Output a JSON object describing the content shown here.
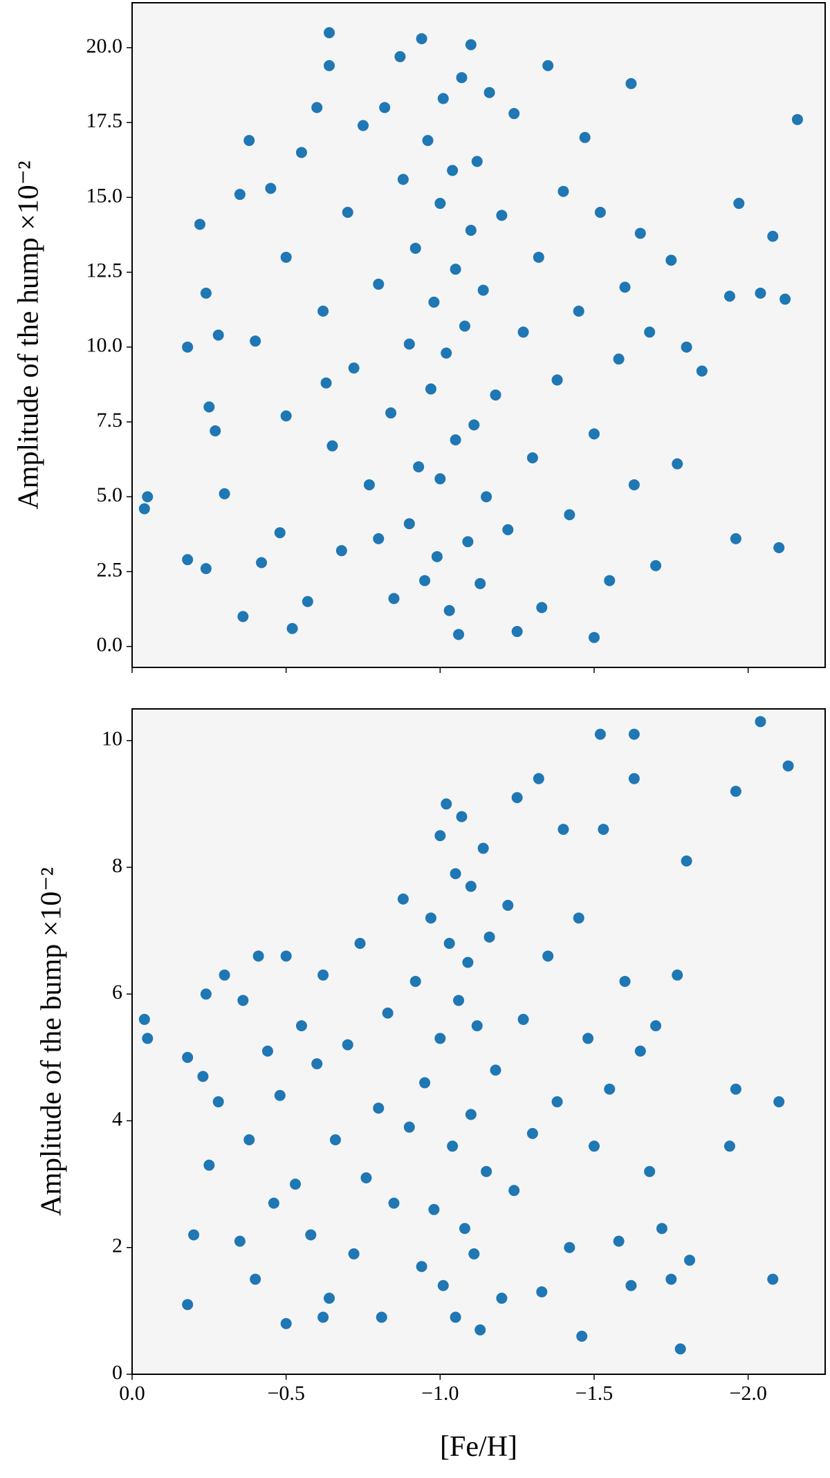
{
  "chart_data": [
    {
      "type": "scatter",
      "ylabel": "Amplitude of the hump ×10⁻²",
      "color": "#1f77b4",
      "xlim": [
        0,
        -2.25
      ],
      "ylim": [
        -0.7,
        21.5
      ],
      "xticks": [
        0,
        -0.5,
        -1,
        -1.5,
        -2
      ],
      "yticks": [
        {
          "value": 0,
          "label": "0.0"
        },
        2.5,
        {
          "value": 5,
          "label": "5.0"
        },
        7.5,
        {
          "value": 10,
          "label": "10.0"
        },
        12.5,
        {
          "value": 15,
          "label": "15.0"
        },
        17.5,
        {
          "value": 20,
          "label": "20.0"
        }
      ],
      "x": [
        -0.04,
        -0.05,
        -0.18,
        -0.18,
        -0.22,
        -0.24,
        -0.24,
        -0.25,
        -0.27,
        -0.28,
        -0.3,
        -0.35,
        -0.36,
        -0.38,
        -0.4,
        -0.42,
        -0.45,
        -0.48,
        -0.5,
        -0.5,
        -0.52,
        -0.55,
        -0.57,
        -0.6,
        -0.62,
        -0.63,
        -0.64,
        -0.64,
        -0.65,
        -0.68,
        -0.7,
        -0.72,
        -0.75,
        -0.77,
        -0.8,
        -0.8,
        -0.82,
        -0.84,
        -0.85,
        -0.87,
        -0.88,
        -0.9,
        -0.9,
        -0.92,
        -0.93,
        -0.94,
        -0.95,
        -0.96,
        -0.97,
        -0.98,
        -0.99,
        -1.0,
        -1.0,
        -1.01,
        -1.02,
        -1.03,
        -1.04,
        -1.05,
        -1.05,
        -1.06,
        -1.07,
        -1.08,
        -1.09,
        -1.1,
        -1.1,
        -1.11,
        -1.12,
        -1.13,
        -1.14,
        -1.15,
        -1.16,
        -1.18,
        -1.2,
        -1.22,
        -1.24,
        -1.25,
        -1.27,
        -1.3,
        -1.32,
        -1.33,
        -1.35,
        -1.38,
        -1.4,
        -1.42,
        -1.45,
        -1.47,
        -1.5,
        -1.5,
        -1.52,
        -1.55,
        -1.58,
        -1.6,
        -1.62,
        -1.63,
        -1.65,
        -1.68,
        -1.7,
        -1.75,
        -1.77,
        -1.8,
        -1.85,
        -1.94,
        -1.96,
        -1.97,
        -2.04,
        -2.08,
        -2.1,
        -2.12,
        -2.16
      ],
      "y": [
        4.6,
        5.0,
        10.0,
        2.9,
        14.1,
        11.8,
        2.6,
        8.0,
        7.2,
        10.4,
        5.1,
        15.1,
        1.0,
        16.9,
        10.2,
        2.8,
        15.3,
        3.8,
        13.0,
        7.7,
        0.6,
        16.5,
        1.5,
        18.0,
        11.2,
        8.8,
        20.5,
        19.4,
        6.7,
        3.2,
        14.5,
        9.3,
        17.4,
        5.4,
        12.1,
        3.6,
        18.0,
        7.8,
        1.6,
        19.7,
        15.6,
        10.1,
        4.1,
        13.3,
        6.0,
        20.3,
        2.2,
        16.9,
        8.6,
        11.5,
        3.0,
        14.8,
        5.6,
        18.3,
        9.8,
        1.2,
        15.9,
        12.6,
        6.9,
        0.4,
        19.0,
        10.7,
        3.5,
        20.1,
        13.9,
        7.4,
        16.2,
        2.1,
        11.9,
        5.0,
        18.5,
        8.4,
        14.4,
        3.9,
        17.8,
        0.5,
        10.5,
        6.3,
        13.0,
        1.3,
        19.4,
        8.9,
        15.2,
        4.4,
        11.2,
        17.0,
        0.3,
        7.1,
        14.5,
        2.2,
        9.6,
        12.0,
        18.8,
        5.4,
        13.8,
        10.5,
        2.7,
        12.9,
        6.1,
        10.0,
        9.2,
        11.7,
        3.6,
        14.8,
        11.8,
        13.7,
        3.3,
        11.6,
        17.6
      ]
    },
    {
      "type": "scatter",
      "ylabel": "Amplitude of the bump ×10⁻²",
      "xlabel": "[Fe/H]",
      "color": "#1f77b4",
      "xlim": [
        0,
        -2.25
      ],
      "ylim": [
        0,
        10.5
      ],
      "xticks": [
        {
          "value": 0,
          "label": "0.0"
        },
        {
          "value": -0.5,
          "label": "−0.5"
        },
        {
          "value": -1,
          "label": "−1.0"
        },
        {
          "value": -1.5,
          "label": "−1.5"
        },
        {
          "value": -2,
          "label": "−2.0"
        }
      ],
      "yticks": [
        0,
        2,
        4,
        6,
        8,
        10
      ],
      "x": [
        -0.04,
        -0.05,
        -0.18,
        -0.18,
        -0.2,
        -0.23,
        -0.24,
        -0.25,
        -0.28,
        -0.3,
        -0.35,
        -0.36,
        -0.38,
        -0.4,
        -0.41,
        -0.44,
        -0.46,
        -0.48,
        -0.5,
        -0.5,
        -0.53,
        -0.55,
        -0.58,
        -0.6,
        -0.62,
        -0.62,
        -0.64,
        -0.66,
        -0.7,
        -0.72,
        -0.74,
        -0.76,
        -0.8,
        -0.81,
        -0.83,
        -0.85,
        -0.88,
        -0.9,
        -0.92,
        -0.94,
        -0.95,
        -0.97,
        -0.98,
        -1.0,
        -1.0,
        -1.01,
        -1.02,
        -1.03,
        -1.04,
        -1.05,
        -1.05,
        -1.06,
        -1.07,
        -1.08,
        -1.09,
        -1.1,
        -1.1,
        -1.11,
        -1.12,
        -1.13,
        -1.14,
        -1.15,
        -1.16,
        -1.18,
        -1.2,
        -1.22,
        -1.24,
        -1.25,
        -1.27,
        -1.3,
        -1.32,
        -1.33,
        -1.35,
        -1.38,
        -1.4,
        -1.42,
        -1.45,
        -1.46,
        -1.48,
        -1.5,
        -1.52,
        -1.53,
        -1.55,
        -1.58,
        -1.6,
        -1.62,
        -1.63,
        -1.63,
        -1.65,
        -1.68,
        -1.7,
        -1.72,
        -1.75,
        -1.77,
        -1.78,
        -1.8,
        -1.81,
        -1.94,
        -1.96,
        -1.96,
        -2.04,
        -2.08,
        -2.1,
        -2.13
      ],
      "y": [
        5.6,
        5.3,
        5.0,
        1.1,
        2.2,
        4.7,
        6.0,
        3.3,
        4.3,
        6.3,
        2.1,
        5.9,
        3.7,
        1.5,
        6.6,
        5.1,
        2.7,
        4.4,
        0.8,
        6.6,
        3.0,
        5.5,
        2.2,
        4.9,
        6.3,
        0.9,
        1.2,
        3.7,
        5.2,
        1.9,
        6.8,
        3.1,
        4.2,
        0.9,
        5.7,
        2.7,
        7.5,
        3.9,
        6.2,
        1.7,
        4.6,
        7.2,
        2.6,
        8.5,
        5.3,
        1.4,
        9.0,
        6.8,
        3.6,
        7.9,
        0.9,
        5.9,
        8.8,
        2.3,
        6.5,
        4.1,
        7.7,
        1.9,
        5.5,
        0.7,
        8.3,
        3.2,
        6.9,
        4.8,
        1.2,
        7.4,
        2.9,
        9.1,
        5.6,
        3.8,
        9.4,
        1.3,
        6.6,
        4.3,
        8.6,
        2.0,
        7.2,
        0.6,
        5.3,
        3.6,
        10.1,
        8.6,
        4.5,
        2.1,
        6.2,
        1.4,
        10.1,
        9.4,
        5.1,
        3.2,
        5.5,
        2.3,
        1.5,
        6.3,
        0.4,
        8.1,
        1.8,
        3.6,
        9.2,
        4.5,
        10.3,
        1.5,
        4.3,
        9.6
      ]
    }
  ]
}
